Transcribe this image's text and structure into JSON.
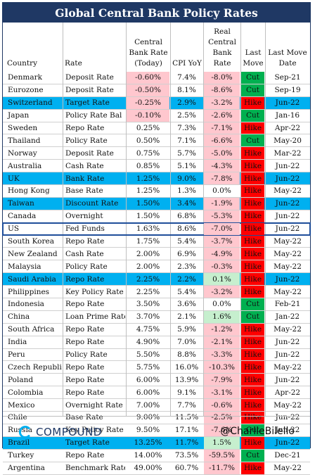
{
  "title": "Global Central Bank Policy Rates",
  "headers": {
    "country": "Country",
    "rate": "Rate",
    "cb_rate": [
      "Central",
      "Bank Rate",
      "(Today)"
    ],
    "cpi": "CPI YoY",
    "real": [
      "Real",
      "Central",
      "Bank",
      "Rate"
    ],
    "last_move": [
      "Last",
      "Move"
    ],
    "last_move_date": [
      "Last Move",
      "Date"
    ]
  },
  "colors": {
    "header": "#1f3864",
    "blue_row": "#00b0f0",
    "negative": "#ffc7ce",
    "positive": "#c6efce",
    "cut": "#00b050",
    "hike": "#ff0000"
  },
  "rows": [
    {
      "country": "Denmark",
      "rate": "Deposit Rate",
      "cb": "-0.60%",
      "cpi": "7.4%",
      "real": "-8.0%",
      "move": "Cut",
      "date": "Sep-21",
      "blue": false
    },
    {
      "country": "Eurozone",
      "rate": "Deposit Rate",
      "cb": "-0.50%",
      "cpi": "8.1%",
      "real": "-8.6%",
      "move": "Cut",
      "date": "Sep-19",
      "blue": false
    },
    {
      "country": "Switzerland",
      "rate": "Target Rate",
      "cb": "-0.25%",
      "cpi": "2.9%",
      "real": "-3.2%",
      "move": "Hike",
      "date": "Jun-22",
      "blue": true
    },
    {
      "country": "Japan",
      "rate": "Policy Rate Bal",
      "cb": "-0.10%",
      "cpi": "2.5%",
      "real": "-2.6%",
      "move": "Cut",
      "date": "Jan-16",
      "blue": false
    },
    {
      "country": "Sweden",
      "rate": "Repo Rate",
      "cb": "0.25%",
      "cpi": "7.3%",
      "real": "-7.1%",
      "move": "Hike",
      "date": "Apr-22",
      "blue": false
    },
    {
      "country": "Thailand",
      "rate": "Policy Rate",
      "cb": "0.50%",
      "cpi": "7.1%",
      "real": "-6.6%",
      "move": "Cut",
      "date": "May-20",
      "blue": false
    },
    {
      "country": "Norway",
      "rate": "Deposit Rate",
      "cb": "0.75%",
      "cpi": "5.7%",
      "real": "-5.0%",
      "move": "Hike",
      "date": "Mar-22",
      "blue": false
    },
    {
      "country": "Australia",
      "rate": "Cash Rate",
      "cb": "0.85%",
      "cpi": "5.1%",
      "real": "-4.3%",
      "move": "Hike",
      "date": "Jun-22",
      "blue": false
    },
    {
      "country": "UK",
      "rate": "Bank Rate",
      "cb": "1.25%",
      "cpi": "9.0%",
      "real": "-7.8%",
      "move": "Hike",
      "date": "Jun-22",
      "blue": true
    },
    {
      "country": "Hong Kong",
      "rate": "Base Rate",
      "cb": "1.25%",
      "cpi": "1.3%",
      "real": "0.0%",
      "move": "Hike",
      "date": "May-22",
      "blue": false
    },
    {
      "country": "Taiwan",
      "rate": "Discount Rate",
      "cb": "1.50%",
      "cpi": "3.4%",
      "real": "-1.9%",
      "move": "Hike",
      "date": "Jun-22",
      "blue": true
    },
    {
      "country": "Canada",
      "rate": "Overnight",
      "cb": "1.50%",
      "cpi": "6.8%",
      "real": "-5.3%",
      "move": "Hike",
      "date": "Jun-22",
      "blue": false
    },
    {
      "country": "US",
      "rate": "Fed Funds",
      "cb": "1.63%",
      "cpi": "8.6%",
      "real": "-7.0%",
      "move": "Hike",
      "date": "Jun-22",
      "blue": false,
      "highlight": true
    },
    {
      "country": "South Korea",
      "rate": "Repo Rate",
      "cb": "1.75%",
      "cpi": "5.4%",
      "real": "-3.7%",
      "move": "Hike",
      "date": "May-22",
      "blue": false
    },
    {
      "country": "New Zealand",
      "rate": "Cash Rate",
      "cb": "2.00%",
      "cpi": "6.9%",
      "real": "-4.9%",
      "move": "Hike",
      "date": "May-22",
      "blue": false
    },
    {
      "country": "Malaysia",
      "rate": "Policy Rate",
      "cb": "2.00%",
      "cpi": "2.3%",
      "real": "-0.3%",
      "move": "Hike",
      "date": "May-22",
      "blue": false
    },
    {
      "country": "Saudi Arabia",
      "rate": "Repo Rate",
      "cb": "2.25%",
      "cpi": "2.2%",
      "real": "0.1%",
      "move": "Hike",
      "date": "Jun-22",
      "blue": true
    },
    {
      "country": "Philippines",
      "rate": "Key Policy Rate",
      "cb": "2.25%",
      "cpi": "5.4%",
      "real": "-3.2%",
      "move": "Hike",
      "date": "May-22",
      "blue": false
    },
    {
      "country": "Indonesia",
      "rate": "Repo Rate",
      "cb": "3.50%",
      "cpi": "3.6%",
      "real": "0.0%",
      "move": "Cut",
      "date": "Feb-21",
      "blue": false
    },
    {
      "country": "China",
      "rate": "Loan Prime Rate",
      "cb": "3.70%",
      "cpi": "2.1%",
      "real": "1.6%",
      "move": "Cut",
      "date": "Jan-22",
      "blue": false
    },
    {
      "country": "South Africa",
      "rate": "Repo Rate",
      "cb": "4.75%",
      "cpi": "5.9%",
      "real": "-1.2%",
      "move": "Hike",
      "date": "May-22",
      "blue": false
    },
    {
      "country": "India",
      "rate": "Repo Rate",
      "cb": "4.90%",
      "cpi": "7.0%",
      "real": "-2.1%",
      "move": "Hike",
      "date": "Jun-22",
      "blue": false
    },
    {
      "country": "Peru",
      "rate": "Policy Rate",
      "cb": "5.50%",
      "cpi": "8.8%",
      "real": "-3.3%",
      "move": "Hike",
      "date": "Jun-22",
      "blue": false
    },
    {
      "country": "Czech Republic",
      "rate": "Repo Rate",
      "cb": "5.75%",
      "cpi": "16.0%",
      "real": "-10.3%",
      "move": "Hike",
      "date": "May-22",
      "blue": false
    },
    {
      "country": "Poland",
      "rate": "Repo Rate",
      "cb": "6.00%",
      "cpi": "13.9%",
      "real": "-7.9%",
      "move": "Hike",
      "date": "Jun-22",
      "blue": false
    },
    {
      "country": "Colombia",
      "rate": "Repo Rate",
      "cb": "6.00%",
      "cpi": "9.1%",
      "real": "-3.1%",
      "move": "Hike",
      "date": "Apr-22",
      "blue": false
    },
    {
      "country": "Mexico",
      "rate": "Overnight Rate",
      "cb": "7.00%",
      "cpi": "7.7%",
      "real": "-0.6%",
      "move": "Hike",
      "date": "May-22",
      "blue": false
    },
    {
      "country": "Chile",
      "rate": "Base Rate",
      "cb": "9.00%",
      "cpi": "11.5%",
      "real": "-2.5%",
      "move": "Hike",
      "date": "Jun-22",
      "blue": false
    },
    {
      "country": "Russia",
      "rate": "Key Policy Rate",
      "cb": "9.50%",
      "cpi": "17.1%",
      "real": "-7.6%",
      "move": "Cut",
      "date": "Jun-22",
      "blue": false
    },
    {
      "country": "Brazil",
      "rate": "Target Rate",
      "cb": "13.25%",
      "cpi": "11.7%",
      "real": "1.5%",
      "move": "Hike",
      "date": "Jun-22",
      "blue": true
    },
    {
      "country": "Turkey",
      "rate": "Repo Rate",
      "cb": "14.00%",
      "cpi": "73.5%",
      "real": "-59.5%",
      "move": "Cut",
      "date": "Dec-21",
      "blue": false
    },
    {
      "country": "Argentina",
      "rate": "Benchmark Rate",
      "cb": "49.00%",
      "cpi": "60.7%",
      "real": "-11.7%",
      "move": "Hike",
      "date": "May-22",
      "blue": false
    }
  ],
  "footer": {
    "logo_text": "COMPOUND",
    "logo_icon": "compound-c-icon",
    "handle": "@CharlieBilello"
  }
}
